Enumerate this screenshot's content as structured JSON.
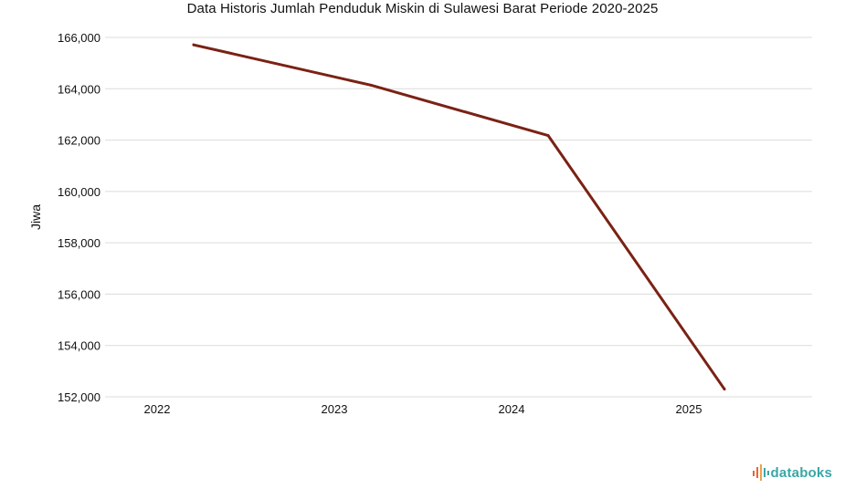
{
  "chart_data": {
    "type": "line",
    "title": "Data Historis Jumlah Penduduk Miskin di Sulawesi Barat Periode 2020-2025",
    "xlabel": "",
    "ylabel": "Jiwa",
    "categories": [
      "2022",
      "2023",
      "2024",
      "2025"
    ],
    "series": [
      {
        "values": [
          165710,
          164140,
          162180,
          152300
        ]
      }
    ],
    "ylim": [
      152000,
      166000
    ],
    "yticks": [
      166000,
      164000,
      162000,
      160000,
      158000,
      156000,
      154000,
      152000
    ],
    "ytick_labels": [
      "166,000",
      "164,000",
      "162,000",
      "160,000",
      "158,000",
      "156,000",
      "154,000",
      "152,000"
    ],
    "grid": true,
    "legend": "none",
    "colors": {
      "line": "#7a2214",
      "grid": "#dcdcdc",
      "brand_text": "#3aa6a6",
      "brand_icon": [
        "#e8643c",
        "#f0a04b",
        "#3aa6a6"
      ]
    }
  },
  "brand": {
    "name": "databoks",
    "icon": "databoks-logo-icon"
  }
}
